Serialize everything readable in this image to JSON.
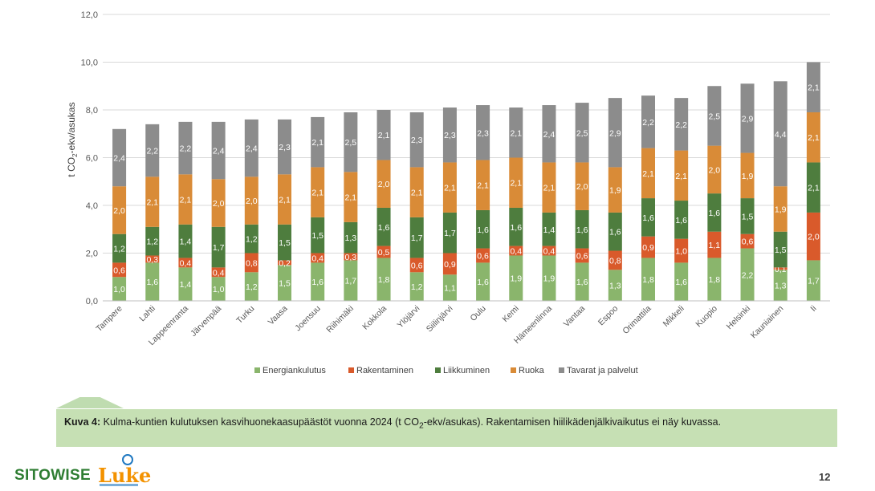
{
  "caption": {
    "label": "Kuva 4:",
    "text_pre": " Kulma-kuntien kulutuksen kasvihuonekaasupäästöt vuonna 2024 (t CO",
    "text_sub": "2",
    "text_post": "-ekv/asukas). Rakentamisen hiilikädenjälkivaikutus ei näy kuvassa."
  },
  "footer": {
    "logo_left": "SITOWISE",
    "logo_right": "Luke",
    "page_number": "12"
  },
  "chart_data": {
    "type": "bar",
    "stacked": true,
    "title": "",
    "xlabel": "",
    "ylabel": "t CO2-ekv/asukas",
    "ylim": [
      0,
      12
    ],
    "yticks": [
      "0,0",
      "2,0",
      "4,0",
      "6,0",
      "8,0",
      "10,0",
      "12,0"
    ],
    "grid": true,
    "legend_position": "bottom",
    "categories": [
      "Tampere",
      "Lahti",
      "Lappeenranta",
      "Järvenpää",
      "Turku",
      "Vaasa",
      "Joensuu",
      "Riihimäki",
      "Kokkola",
      "Ylöjärvi",
      "Siilinjärvi",
      "Oulu",
      "Kemi",
      "Hämeenlinna",
      "Vantaa",
      "Espoo",
      "Orimattila",
      "Mikkeli",
      "Kuopio",
      "Helsinki",
      "Kauniainen",
      "Ii"
    ],
    "series": [
      {
        "name": "Energiankulutus",
        "color": "#8ab56c",
        "values": [
          1.0,
          1.6,
          1.4,
          1.0,
          1.2,
          1.5,
          1.6,
          1.7,
          1.8,
          1.2,
          1.1,
          1.6,
          1.9,
          1.9,
          1.6,
          1.3,
          1.8,
          1.6,
          1.8,
          2.2,
          1.3,
          1.7
        ]
      },
      {
        "name": "Rakentaminen",
        "color": "#d95a2b",
        "values": [
          0.6,
          0.3,
          0.4,
          0.4,
          0.8,
          0.2,
          0.4,
          0.3,
          0.5,
          0.6,
          0.9,
          0.6,
          0.4,
          0.4,
          0.6,
          0.8,
          0.9,
          1.0,
          1.1,
          0.6,
          0.1,
          2.0
        ]
      },
      {
        "name": "Liikkuminen",
        "color": "#4e7d3e",
        "values": [
          1.2,
          1.2,
          1.4,
          1.7,
          1.2,
          1.5,
          1.5,
          1.3,
          1.6,
          1.7,
          1.7,
          1.6,
          1.6,
          1.4,
          1.6,
          1.6,
          1.6,
          1.6,
          1.6,
          1.5,
          1.5,
          2.1
        ]
      },
      {
        "name": "Ruoka",
        "color": "#d98b37",
        "values": [
          2.0,
          2.1,
          2.1,
          2.0,
          2.0,
          2.1,
          2.1,
          2.1,
          2.0,
          2.1,
          2.1,
          2.1,
          2.1,
          2.1,
          2.0,
          1.9,
          2.1,
          2.1,
          2.0,
          1.9,
          1.9,
          2.1
        ]
      },
      {
        "name": "Tavarat ja palvelut",
        "color": "#8c8c8c",
        "values": [
          2.4,
          2.2,
          2.2,
          2.4,
          2.4,
          2.3,
          2.1,
          2.5,
          2.1,
          2.3,
          2.3,
          2.3,
          2.1,
          2.4,
          2.5,
          2.9,
          2.2,
          2.2,
          2.5,
          2.9,
          4.4,
          2.1
        ]
      }
    ]
  }
}
